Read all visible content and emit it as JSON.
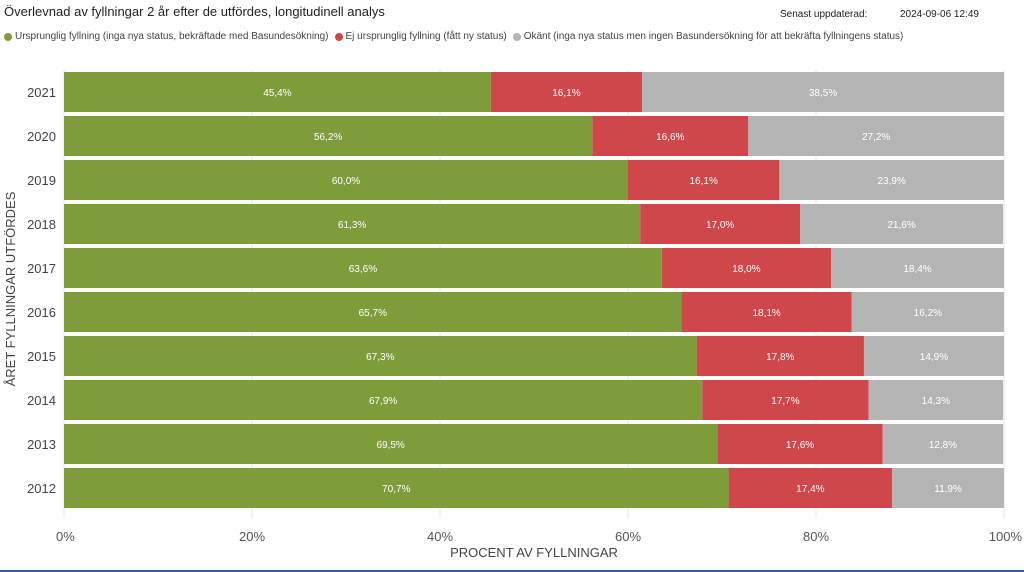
{
  "header": {
    "title": "Överlevnad av fyllningar 2 år efter de utfördes, longitudinell analys",
    "updated_label": "Senast uppdaterad:",
    "updated_value": "2024-09-06 12:49"
  },
  "chart_data": {
    "type": "bar",
    "orientation": "horizontal",
    "stacked": "percent",
    "title": "Överlevnad av fyllningar 2 år efter de utfördes, longitudinell analys",
    "xlabel": "PROCENT AV FYLLNINGAR",
    "ylabel": "ÅRET FYLLNINGAR UTFÖRDES",
    "xlim": [
      0,
      100
    ],
    "x_ticks": [
      "0%",
      "20%",
      "40%",
      "60%",
      "80%",
      "100%"
    ],
    "legend_position": "top-left",
    "categories": [
      "2021",
      "2020",
      "2019",
      "2018",
      "2017",
      "2016",
      "2015",
      "2014",
      "2013",
      "2012"
    ],
    "series": [
      {
        "name": "Ursprunglig fyllning (inga nya status, bekräftade med Basundesökning)",
        "color": "#7e9c3a",
        "values": [
          45.4,
          56.2,
          60.0,
          61.3,
          63.6,
          65.7,
          67.3,
          67.9,
          69.5,
          70.7
        ],
        "labels": [
          "45,4%",
          "56,2%",
          "60,0%",
          "61,3%",
          "63,6%",
          "65,7%",
          "67,3%",
          "67,9%",
          "69,5%",
          "70,7%"
        ]
      },
      {
        "name": "Ej ursprunglig fyllning (fått ny status)",
        "color": "#d0474b",
        "values": [
          16.1,
          16.6,
          16.1,
          17.0,
          18.0,
          18.1,
          17.8,
          17.7,
          17.6,
          17.4
        ],
        "labels": [
          "16,1%",
          "16,6%",
          "16,1%",
          "17,0%",
          "18,0%",
          "18,1%",
          "17,8%",
          "17,7%",
          "17,6%",
          "17,4%"
        ]
      },
      {
        "name": "Okänt (inga nya status men ingen Basundersökning för att bekräfta fyllningens status)",
        "color": "#b4b4b4",
        "values": [
          38.5,
          27.2,
          23.9,
          21.6,
          18.4,
          16.2,
          14.9,
          14.3,
          12.8,
          11.9
        ],
        "labels": [
          "38,5%",
          "27,2%",
          "23,9%",
          "21,6%",
          "18,4%",
          "16,2%",
          "14,9%",
          "14,3%",
          "12,8%",
          "11,9%"
        ]
      }
    ]
  }
}
